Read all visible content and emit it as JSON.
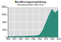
{
  "chart_data": {
    "type": "area",
    "title": "Bevölkerungsentwicklung",
    "subtitle": "Einwohnerzahlen 1850-2010",
    "x": [
      1850,
      1860,
      1870,
      1880,
      1890,
      1900,
      1910,
      1920,
      1930,
      1940,
      1950,
      1960,
      1970,
      1980,
      1990,
      2000,
      2010
    ],
    "values": [
      400,
      450,
      500,
      520,
      550,
      600,
      650,
      700,
      750,
      800,
      1200,
      3500,
      7500,
      11500,
      15000,
      13000,
      14500
    ],
    "color": "#2e8b7a",
    "xlim": [
      1850,
      2010
    ],
    "xticks": [
      1850,
      1870,
      1890,
      1910,
      1930,
      1950,
      1970,
      1990,
      2010
    ],
    "ylim": [
      0,
      16000
    ],
    "yticks": [
      0,
      4000,
      8000,
      12000,
      16000
    ],
    "grid": true
  }
}
